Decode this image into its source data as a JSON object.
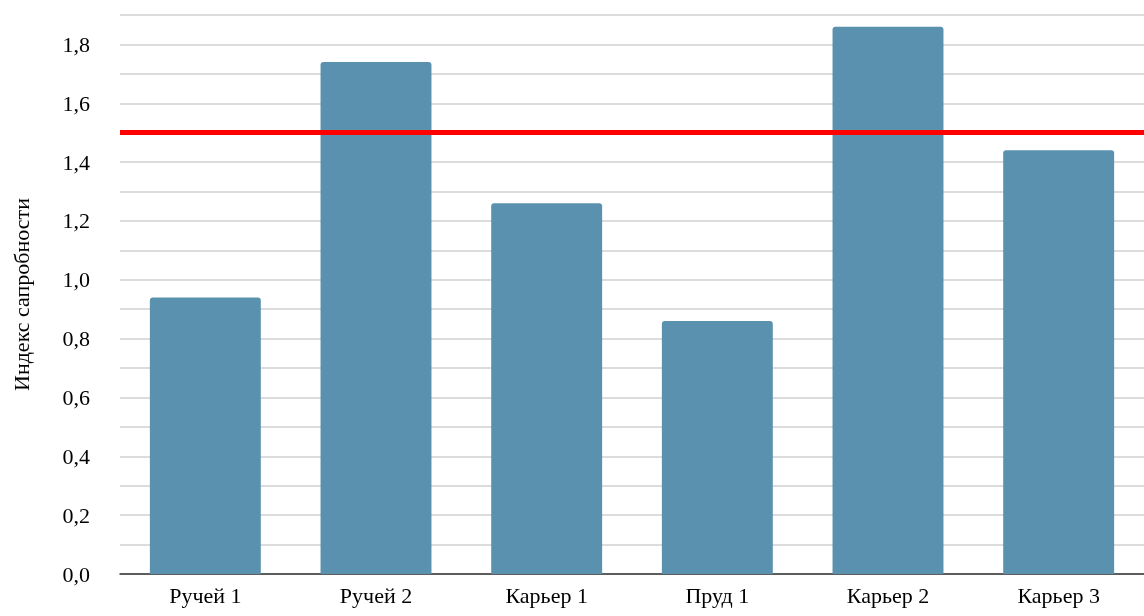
{
  "chart_data": {
    "type": "bar",
    "ylabel": "Индекс сапробности",
    "categories": [
      "Ручей 1",
      "Ручей 2",
      "Карьер 1",
      "Пруд 1",
      "Карьер 2",
      "Карьер 3"
    ],
    "values": [
      0.94,
      1.74,
      1.26,
      0.86,
      1.86,
      1.44
    ],
    "color": "#5a91ae",
    "ylim": [
      0,
      1.9
    ],
    "yticks": [
      {
        "value": 0,
        "label": "0,0"
      },
      {
        "value": 0.1,
        "label": null
      },
      {
        "value": 0.2,
        "label": "0,2"
      },
      {
        "value": 0.3,
        "label": null
      },
      {
        "value": 0.4,
        "label": "0,4"
      },
      {
        "value": 0.5,
        "label": null
      },
      {
        "value": 0.6,
        "label": "0,6"
      },
      {
        "value": 0.7,
        "label": null
      },
      {
        "value": 0.8,
        "label": "0,8"
      },
      {
        "value": 0.9,
        "label": null
      },
      {
        "value": 1.0,
        "label": "1,0"
      },
      {
        "value": 1.1,
        "label": null
      },
      {
        "value": 1.2,
        "label": "1,2"
      },
      {
        "value": 1.3,
        "label": null
      },
      {
        "value": 1.4,
        "label": "1,4"
      },
      {
        "value": 1.5,
        "label": null
      },
      {
        "value": 1.6,
        "label": "1,6"
      },
      {
        "value": 1.7,
        "label": null
      },
      {
        "value": 1.8,
        "label": "1,8"
      },
      {
        "value": 1.9,
        "label": null
      }
    ],
    "ref_lines": [
      {
        "axis": "y",
        "value": 1.5,
        "label": null,
        "color": "#ff0000"
      }
    ],
    "grid": "y"
  }
}
